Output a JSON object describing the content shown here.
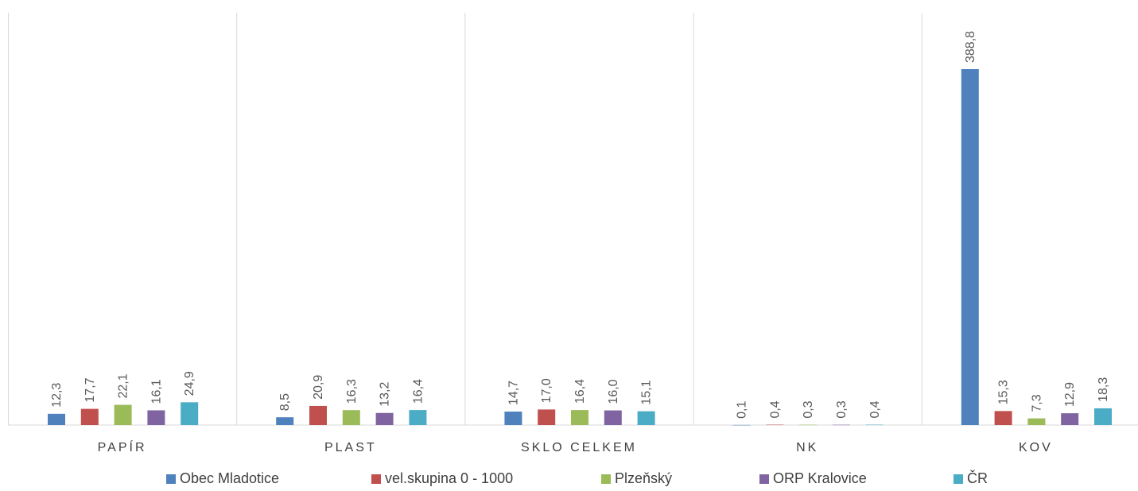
{
  "chart_data": {
    "type": "bar",
    "categories": [
      "PAPÍR",
      "PLAST",
      "SKLO CELKEM",
      "NK",
      "KOV"
    ],
    "series": [
      {
        "name": "Obec Mladotice",
        "color": "#4f81bd",
        "values": [
          12.3,
          8.5,
          14.7,
          0.1,
          388.8
        ],
        "labels": [
          "12,3",
          "8,5",
          "14,7",
          "0,1",
          "388,8"
        ]
      },
      {
        "name": "vel.skupina 0 - 1000",
        "color": "#c0504d",
        "values": [
          17.7,
          20.9,
          17.0,
          0.4,
          15.3
        ],
        "labels": [
          "17,7",
          "20,9",
          "17,0",
          "0,4",
          "15,3"
        ]
      },
      {
        "name": "Plzeňský",
        "color": "#9bbb59",
        "values": [
          22.1,
          16.3,
          16.4,
          0.3,
          7.3
        ],
        "labels": [
          "22,1",
          "16,3",
          "16,4",
          "0,3",
          "7,3"
        ]
      },
      {
        "name": "ORP Kralovice",
        "color": "#8064a2",
        "values": [
          16.1,
          13.2,
          16.0,
          0.3,
          12.9
        ],
        "labels": [
          "16,1",
          "13,2",
          "16,0",
          "0,3",
          "12,9"
        ]
      },
      {
        "name": "ČR",
        "color": "#4bacc6",
        "values": [
          24.9,
          16.4,
          15.1,
          0.4,
          18.3
        ],
        "labels": [
          "24,9",
          "16,4",
          "15,1",
          "0,4",
          "18,3"
        ]
      }
    ],
    "ylim": [
      0,
      450
    ],
    "grid": false,
    "legend": "bottom"
  }
}
